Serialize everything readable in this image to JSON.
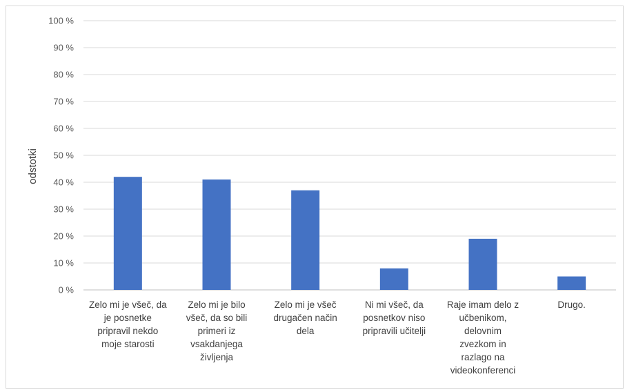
{
  "chart_data": {
    "type": "bar",
    "ylabel": "odstotki",
    "ylim": [
      0,
      100
    ],
    "ytick_step": 10,
    "ytick_suffix": " %",
    "grid": true,
    "bar_color": "#4472C4",
    "categories": [
      [
        "Zelo mi je všeč, da",
        "je posnetke",
        "pripravil nekdo",
        "moje starosti"
      ],
      [
        "Zelo mi je bilo",
        "všeč, da so bili",
        "primeri iz",
        "vsakdanjega",
        "življenja"
      ],
      [
        "Zelo mi je všeč",
        "drugačen način",
        "dela"
      ],
      [
        "Ni mi všeč, da",
        "posnetkov niso",
        "pripravili učitelji"
      ],
      [
        "Raje imam delo z",
        "učbenikom,",
        "delovnim",
        "zvezkom in",
        "razlago na",
        "videokonferenci"
      ],
      [
        "Drugo."
      ]
    ],
    "values": [
      42,
      41,
      37,
      8,
      19,
      5
    ]
  }
}
